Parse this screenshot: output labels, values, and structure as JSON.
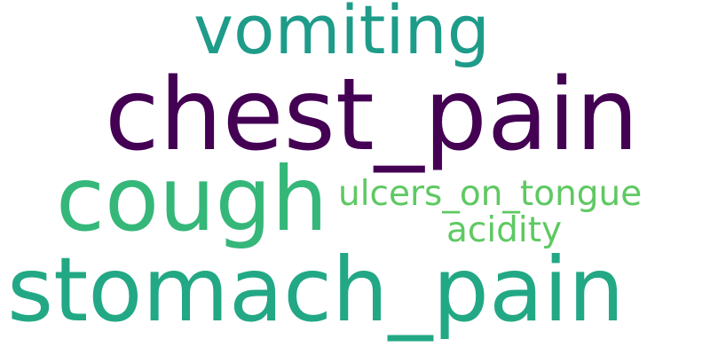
{
  "words": [
    {
      "text": "vomiting",
      "color": "#1e9c89"
    },
    {
      "text": "chest_pain",
      "color": "#440154"
    },
    {
      "text": "cough",
      "color": "#35b779"
    },
    {
      "text": "ulcers_on_tongue",
      "color": "#5ec962"
    },
    {
      "text": "acidity",
      "color": "#5ec962"
    },
    {
      "text": "stomach_pain",
      "color": "#22a884"
    }
  ]
}
